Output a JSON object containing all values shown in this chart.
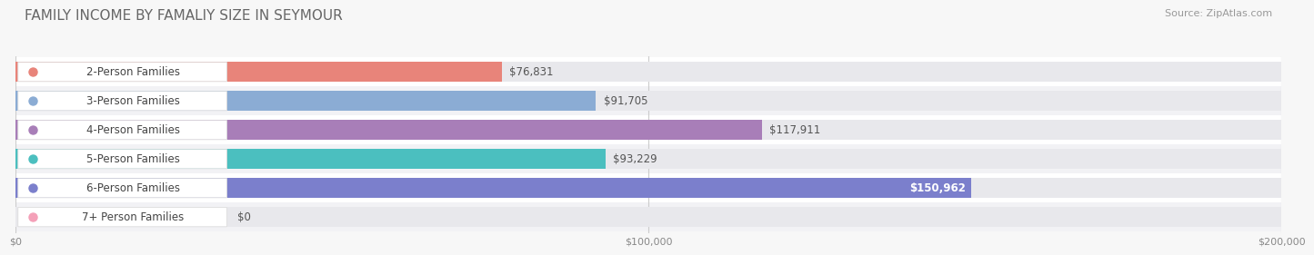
{
  "title": "FAMILY INCOME BY FAMALIY SIZE IN SEYMOUR",
  "source": "Source: ZipAtlas.com",
  "categories": [
    "2-Person Families",
    "3-Person Families",
    "4-Person Families",
    "5-Person Families",
    "6-Person Families",
    "7+ Person Families"
  ],
  "values": [
    76831,
    91705,
    117911,
    93229,
    150962,
    0
  ],
  "bar_colors": [
    "#E8847A",
    "#8BACD4",
    "#A87EB8",
    "#4BBFBF",
    "#7B7FCC",
    "#F4A0B8"
  ],
  "bar_bg_color": "#E8E8EC",
  "xlim": [
    0,
    200000
  ],
  "xticks": [
    0,
    100000,
    200000
  ],
  "xtick_labels": [
    "$0",
    "$100,000",
    "$200,000"
  ],
  "value_label_inside_threshold": 145000,
  "background_color": "#F7F7F7",
  "row_bg_colors": [
    "#FFFFFF",
    "#F2F2F5"
  ],
  "title_fontsize": 11,
  "source_fontsize": 8,
  "bar_label_fontsize": 8.5,
  "value_fontsize": 8.5,
  "bar_height": 0.68
}
